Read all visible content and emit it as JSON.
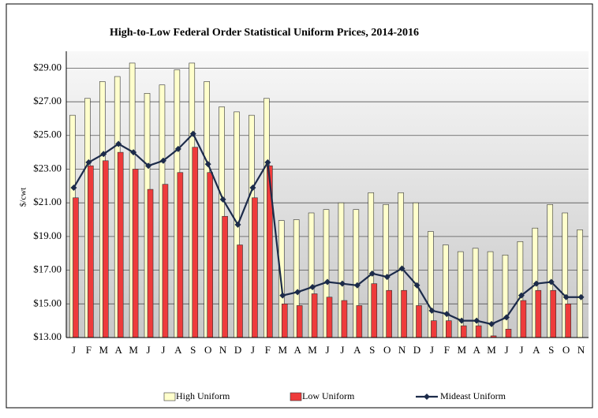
{
  "chart_data": {
    "type": "bar_line",
    "title": "High-to-Low Federal Order Statistical Uniform Prices, 2014-2016",
    "y_label": "$/cwt",
    "categories": [
      "J",
      "F",
      "M",
      "A",
      "M",
      "J",
      "J",
      "A",
      "S",
      "O",
      "N",
      "D",
      "J",
      "F",
      "M",
      "A",
      "M",
      "J",
      "J",
      "A",
      "S",
      "O",
      "N",
      "D",
      "J",
      "F",
      "M",
      "A",
      "M",
      "J",
      "J",
      "A",
      "S",
      "O",
      "N"
    ],
    "series": [
      {
        "name": "High Uniform",
        "type": "bar",
        "color": "#ffffcc",
        "values": [
          26.2,
          27.2,
          28.2,
          28.5,
          29.3,
          27.5,
          28.0,
          28.9,
          29.3,
          28.2,
          26.7,
          26.4,
          26.2,
          27.2,
          19.95,
          20.0,
          20.4,
          20.6,
          21.0,
          20.6,
          21.6,
          20.9,
          21.6,
          21.0,
          19.3,
          18.5,
          18.1,
          18.3,
          18.1,
          17.9,
          18.7,
          19.5,
          20.9,
          20.4,
          19.4
        ]
      },
      {
        "name": "Low Uniform",
        "type": "bar",
        "color": "#ee3b3b",
        "values": [
          21.3,
          23.2,
          23.5,
          24.0,
          23.0,
          21.8,
          22.1,
          22.8,
          24.3,
          22.8,
          20.2,
          18.5,
          21.3,
          23.2,
          15.0,
          14.9,
          15.6,
          15.4,
          15.2,
          14.9,
          16.2,
          15.8,
          15.8,
          14.9,
          14.0,
          14.0,
          13.7,
          13.7,
          13.1,
          13.5,
          15.2,
          15.8,
          15.8,
          15.0,
          null
        ]
      },
      {
        "name": "Mideast Uniform",
        "type": "line",
        "color": "#1c2b4a",
        "values": [
          21.9,
          23.4,
          23.9,
          24.5,
          24.0,
          23.2,
          23.5,
          24.2,
          25.1,
          23.3,
          21.2,
          19.7,
          21.9,
          23.4,
          15.5,
          15.7,
          16.0,
          16.3,
          16.2,
          16.1,
          16.8,
          16.6,
          17.1,
          16.1,
          14.6,
          14.4,
          14.0,
          14.0,
          13.8,
          14.2,
          15.5,
          16.2,
          16.3,
          15.4,
          15.4
        ]
      }
    ],
    "ylim": [
      13,
      30
    ],
    "yticks": [
      {
        "value": 13,
        "label": "$13.00"
      },
      {
        "value": 15,
        "label": "$15.00"
      },
      {
        "value": 17,
        "label": "$17.00"
      },
      {
        "value": 19,
        "label": "$19.00"
      },
      {
        "value": 21,
        "label": "$21.00"
      },
      {
        "value": 23,
        "label": "$23.00"
      },
      {
        "value": 25,
        "label": "$25.00"
      },
      {
        "value": 27,
        "label": "$27.00"
      },
      {
        "value": 29,
        "label": "$29.00"
      }
    ],
    "grid": true,
    "legend": "bottom"
  }
}
